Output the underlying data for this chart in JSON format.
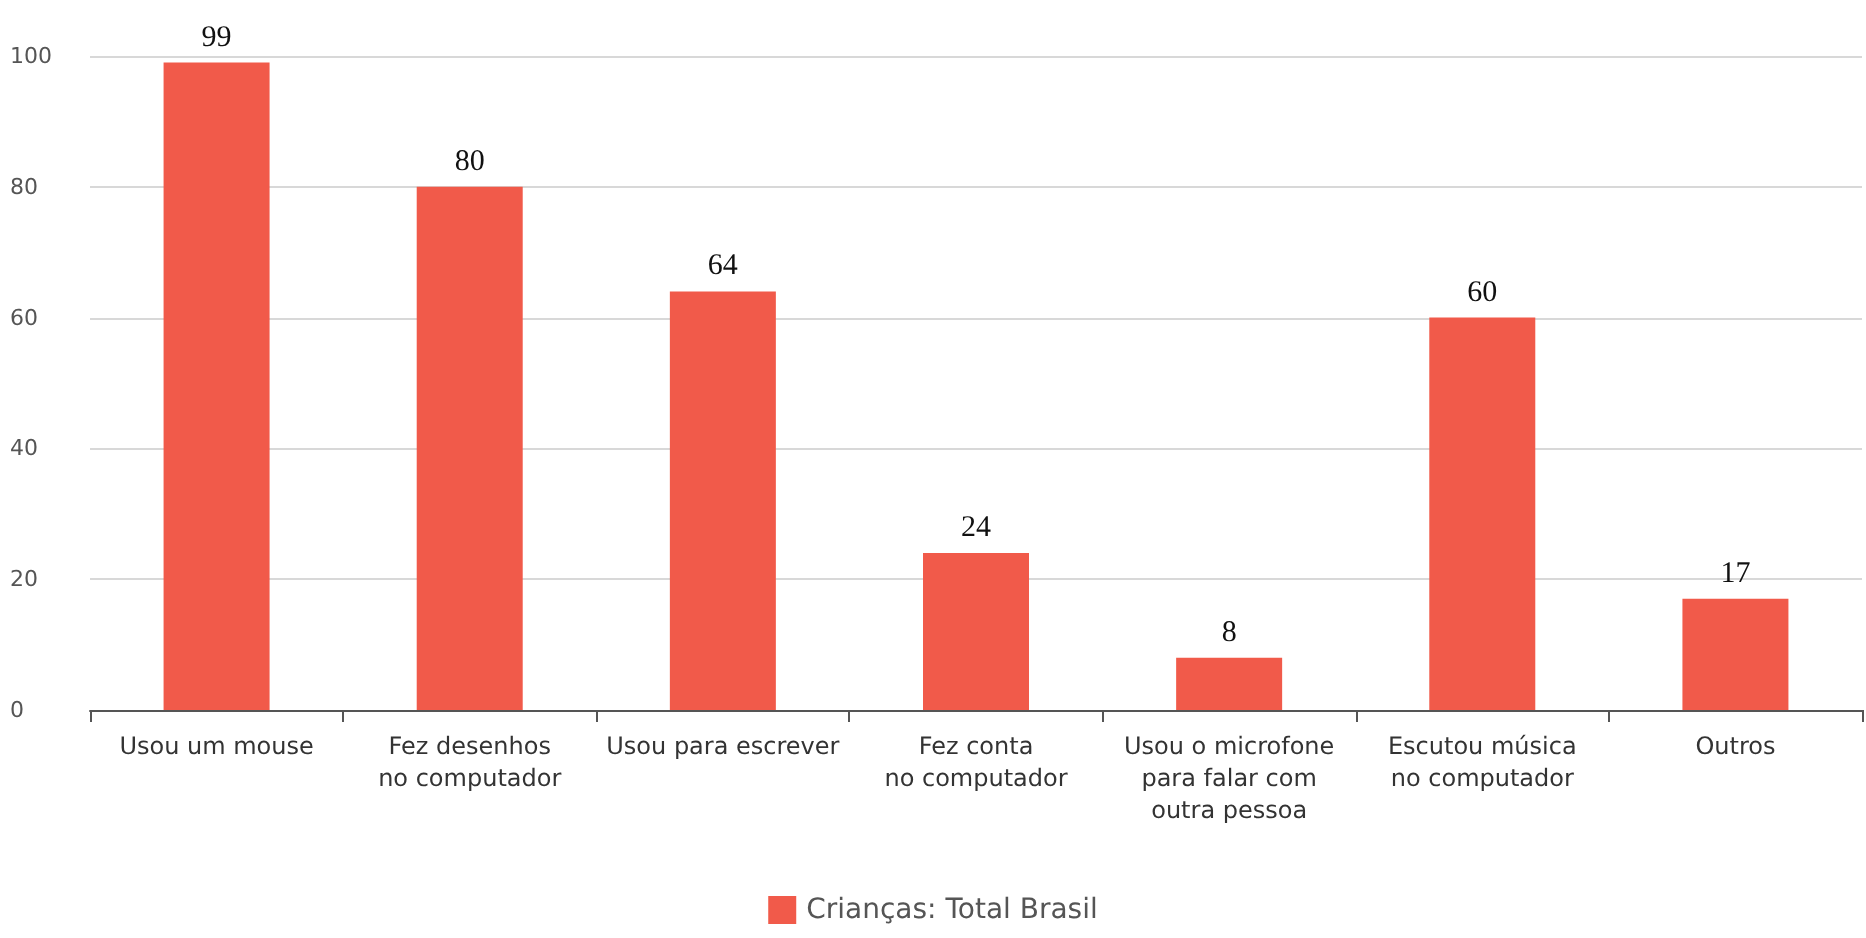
{
  "chart_data": {
    "type": "bar",
    "categories": [
      "Usou um mouse",
      "Fez desenhos\nno computador",
      "Usou para escrever",
      "Fez conta\nno computador",
      "Usou o microfone\npara falar com\noutra pessoa",
      "Escutou música\nno computador",
      "Outros"
    ],
    "series": [
      {
        "name": "Crianças: Total Brasil",
        "color": "#f15a4a",
        "values": [
          99,
          80,
          64,
          24,
          8,
          60,
          17
        ]
      }
    ],
    "ylim": [
      0,
      100
    ],
    "yticks": [
      0,
      20,
      40,
      60,
      80,
      100
    ],
    "grid": "y",
    "legend": "bottom",
    "data_labels": true
  }
}
